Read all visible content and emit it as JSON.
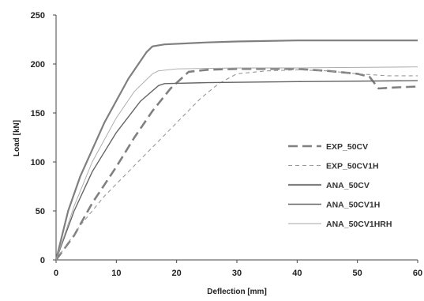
{
  "chart_data": {
    "type": "line",
    "xlabel": "Deflection [mm]",
    "ylabel": "Load [kN]",
    "xlim": [
      0,
      60
    ],
    "ylim": [
      0,
      250
    ],
    "xticks": [
      0,
      10,
      20,
      30,
      40,
      50,
      60
    ],
    "yticks": [
      0,
      50,
      100,
      150,
      200,
      250
    ],
    "grid": false,
    "legend_position": "right",
    "series": [
      {
        "name": "EXP_50CV",
        "style": "long-dash",
        "color": "#808080",
        "x": [
          0,
          3,
          6,
          10,
          13,
          16,
          19,
          22,
          25,
          30,
          35,
          40,
          45,
          50,
          52,
          53.5,
          56,
          60
        ],
        "y": [
          0,
          25,
          58,
          95,
          125,
          152,
          175,
          192,
          194,
          195,
          195,
          195,
          193,
          190,
          187,
          175,
          176,
          177
        ]
      },
      {
        "name": "EXP_50CV1H",
        "style": "short-dash",
        "color": "#999999",
        "x": [
          0,
          4,
          8,
          12,
          16,
          20,
          24,
          27,
          30,
          35,
          40,
          45,
          50,
          55,
          60
        ],
        "y": [
          0,
          35,
          65,
          90,
          115,
          140,
          165,
          180,
          190,
          193,
          194,
          193,
          190,
          188,
          188
        ]
      },
      {
        "name": "ANA_50CV",
        "style": "solid-thick",
        "color": "#7f7f7f",
        "x": [
          0,
          2,
          4,
          8,
          12,
          15,
          16,
          18,
          25,
          30,
          40,
          50,
          60
        ],
        "y": [
          0,
          50,
          85,
          140,
          185,
          212,
          218,
          220,
          222,
          223,
          224,
          224,
          224
        ]
      },
      {
        "name": "ANA_50CV1H",
        "style": "solid",
        "color": "#666666",
        "x": [
          0,
          3,
          6,
          10,
          14,
          17,
          18,
          25,
          40,
          60
        ],
        "y": [
          0,
          50,
          90,
          130,
          162,
          178,
          180,
          181,
          182,
          183
        ]
      },
      {
        "name": "ANA_50CV1HRH",
        "style": "solid-thin",
        "color": "#a6a6a6",
        "x": [
          0,
          3,
          6,
          10,
          13,
          16,
          17,
          20,
          30,
          40,
          60
        ],
        "y": [
          0,
          55,
          100,
          145,
          172,
          190,
          193,
          195,
          196,
          196,
          197
        ]
      }
    ]
  }
}
